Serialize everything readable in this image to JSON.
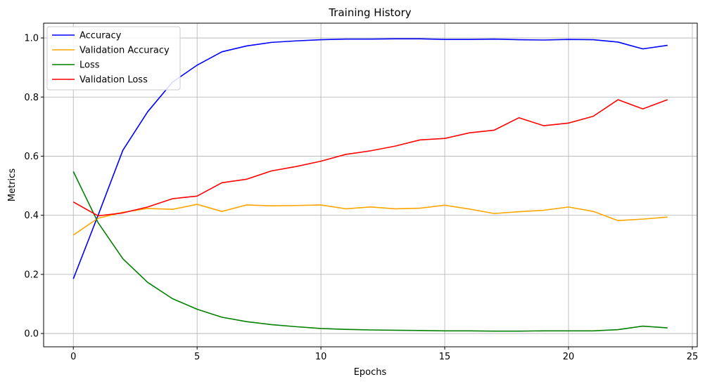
{
  "chart_data": {
    "type": "line",
    "title": "Training History",
    "xlabel": "Epochs",
    "ylabel": "Metrics",
    "xlim": [
      -1.2,
      25.2
    ],
    "ylim": [
      -0.045,
      1.05
    ],
    "xticks": [
      0,
      5,
      10,
      15,
      20,
      25
    ],
    "yticks": [
      0.0,
      0.2,
      0.4,
      0.6,
      0.8,
      1.0
    ],
    "xtick_labels": [
      "0",
      "5",
      "10",
      "15",
      "20",
      "25"
    ],
    "ytick_labels": [
      "0.0",
      "0.2",
      "0.4",
      "0.6",
      "0.8",
      "1.0"
    ],
    "grid": true,
    "legend_position": "top-left",
    "x": [
      0,
      1,
      2,
      3,
      4,
      5,
      6,
      7,
      8,
      9,
      10,
      11,
      12,
      13,
      14,
      15,
      16,
      17,
      18,
      19,
      20,
      21,
      22,
      23,
      24
    ],
    "series": [
      {
        "name": "Accuracy",
        "color": "#0000ff",
        "values": [
          0.185,
          0.4,
          0.62,
          0.75,
          0.85,
          0.908,
          0.953,
          0.973,
          0.985,
          0.99,
          0.994,
          0.996,
          0.996,
          0.997,
          0.997,
          0.995,
          0.995,
          0.996,
          0.994,
          0.993,
          0.995,
          0.994,
          0.986,
          0.963,
          0.975
        ]
      },
      {
        "name": "Validation Accuracy",
        "color": "#ffa500",
        "values": [
          0.333,
          0.39,
          0.41,
          0.423,
          0.42,
          0.437,
          0.413,
          0.435,
          0.432,
          0.433,
          0.435,
          0.422,
          0.428,
          0.422,
          0.424,
          0.434,
          0.421,
          0.406,
          0.412,
          0.417,
          0.428,
          0.413,
          0.382,
          0.387,
          0.394
        ]
      },
      {
        "name": "Loss",
        "color": "#008000",
        "values": [
          0.548,
          0.375,
          0.253,
          0.173,
          0.118,
          0.082,
          0.055,
          0.04,
          0.03,
          0.023,
          0.017,
          0.014,
          0.012,
          0.011,
          0.01,
          0.009,
          0.009,
          0.008,
          0.008,
          0.009,
          0.009,
          0.009,
          0.013,
          0.025,
          0.019
        ]
      },
      {
        "name": "Validation Loss",
        "color": "#ff0000",
        "values": [
          0.445,
          0.398,
          0.408,
          0.428,
          0.456,
          0.465,
          0.51,
          0.522,
          0.55,
          0.565,
          0.583,
          0.606,
          0.618,
          0.634,
          0.655,
          0.66,
          0.679,
          0.688,
          0.73,
          0.703,
          0.712,
          0.735,
          0.791,
          0.76,
          0.791
        ]
      }
    ]
  }
}
